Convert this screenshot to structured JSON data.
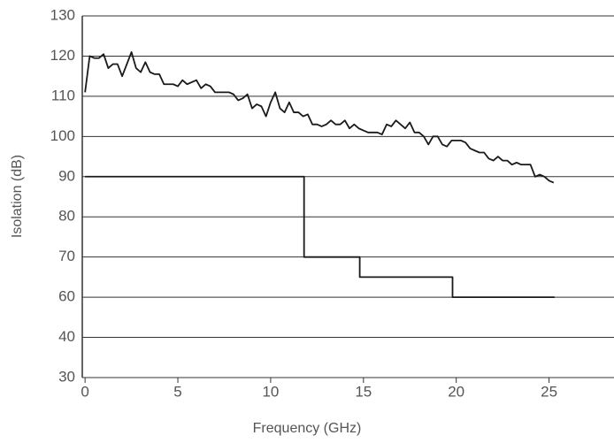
{
  "chart_data": {
    "type": "line",
    "x_label": "Frequency (GHz)",
    "y_label": "Isolation (dB)",
    "xlim": [
      -0.15,
      28.5
    ],
    "xticks": [
      0,
      5,
      10,
      15,
      20,
      25
    ],
    "ylim": [
      30,
      130
    ],
    "yticks": [
      30,
      40,
      60,
      70,
      80,
      90,
      100,
      110,
      120,
      130
    ],
    "grid": true,
    "series": [
      {
        "color": "#1a1a1a",
        "x": [
          0,
          0.25,
          0.5,
          0.75,
          1,
          1.25,
          1.5,
          1.75,
          2,
          2.25,
          2.5,
          2.75,
          3,
          3.25,
          3.5,
          3.75,
          4,
          4.25,
          4.5,
          4.75,
          5,
          5.25,
          5.5,
          5.75,
          6,
          6.25,
          6.5,
          6.75,
          7,
          7.25,
          7.5,
          7.75,
          8,
          8.25,
          8.5,
          8.75,
          9,
          9.25,
          9.5,
          9.75,
          10,
          10.25,
          10.5,
          10.75,
          11,
          11.25,
          11.5,
          11.75,
          12,
          12.25,
          12.5,
          12.75,
          13,
          13.25,
          13.5,
          13.75,
          14,
          14.25,
          14.5,
          14.75,
          15,
          15.25,
          15.5,
          15.75,
          16,
          16.25,
          16.5,
          16.75,
          17,
          17.25,
          17.5,
          17.75,
          18,
          18.25,
          18.5,
          18.75,
          19,
          19.25,
          19.5,
          19.75,
          20,
          20.25,
          20.5,
          20.75,
          21,
          21.25,
          21.5,
          21.75,
          22,
          22.25,
          22.5,
          22.75,
          23,
          23.25,
          23.5,
          23.75,
          24,
          24.25,
          24.5,
          24.75,
          25,
          25.25
        ],
        "values": [
          111,
          120,
          119.5,
          119.5,
          120.5,
          117,
          118,
          118,
          115,
          118,
          121,
          117,
          116,
          118.5,
          116,
          115.5,
          115.5,
          113,
          113,
          113,
          112.5,
          114,
          113,
          113.5,
          114,
          112,
          113,
          112.5,
          111,
          111,
          111,
          111,
          110.5,
          109,
          109.5,
          110.5,
          107,
          108,
          107.5,
          105,
          108.5,
          111,
          107,
          106,
          108.5,
          106,
          106,
          105,
          105.5,
          103,
          103,
          102.5,
          103,
          104,
          103,
          103,
          104,
          102,
          103,
          102,
          101.5,
          101,
          101,
          101,
          100.5,
          103,
          102.5,
          104,
          103,
          102,
          103.5,
          101,
          101,
          100,
          98,
          100,
          100,
          98,
          97.5,
          99,
          99,
          99,
          98.5,
          97,
          96.5,
          96,
          96,
          94.5,
          94,
          95,
          94,
          94,
          93,
          93.5,
          93,
          93,
          93,
          90,
          90.5,
          90,
          89,
          88.5
        ]
      },
      {
        "color": "#1a1a1a",
        "x": [
          0,
          11.8,
          11.8,
          14.8,
          14.8,
          19.8,
          19.8,
          25.3
        ],
        "values": [
          90,
          90,
          70,
          70,
          65,
          65,
          60,
          60
        ]
      }
    ]
  }
}
